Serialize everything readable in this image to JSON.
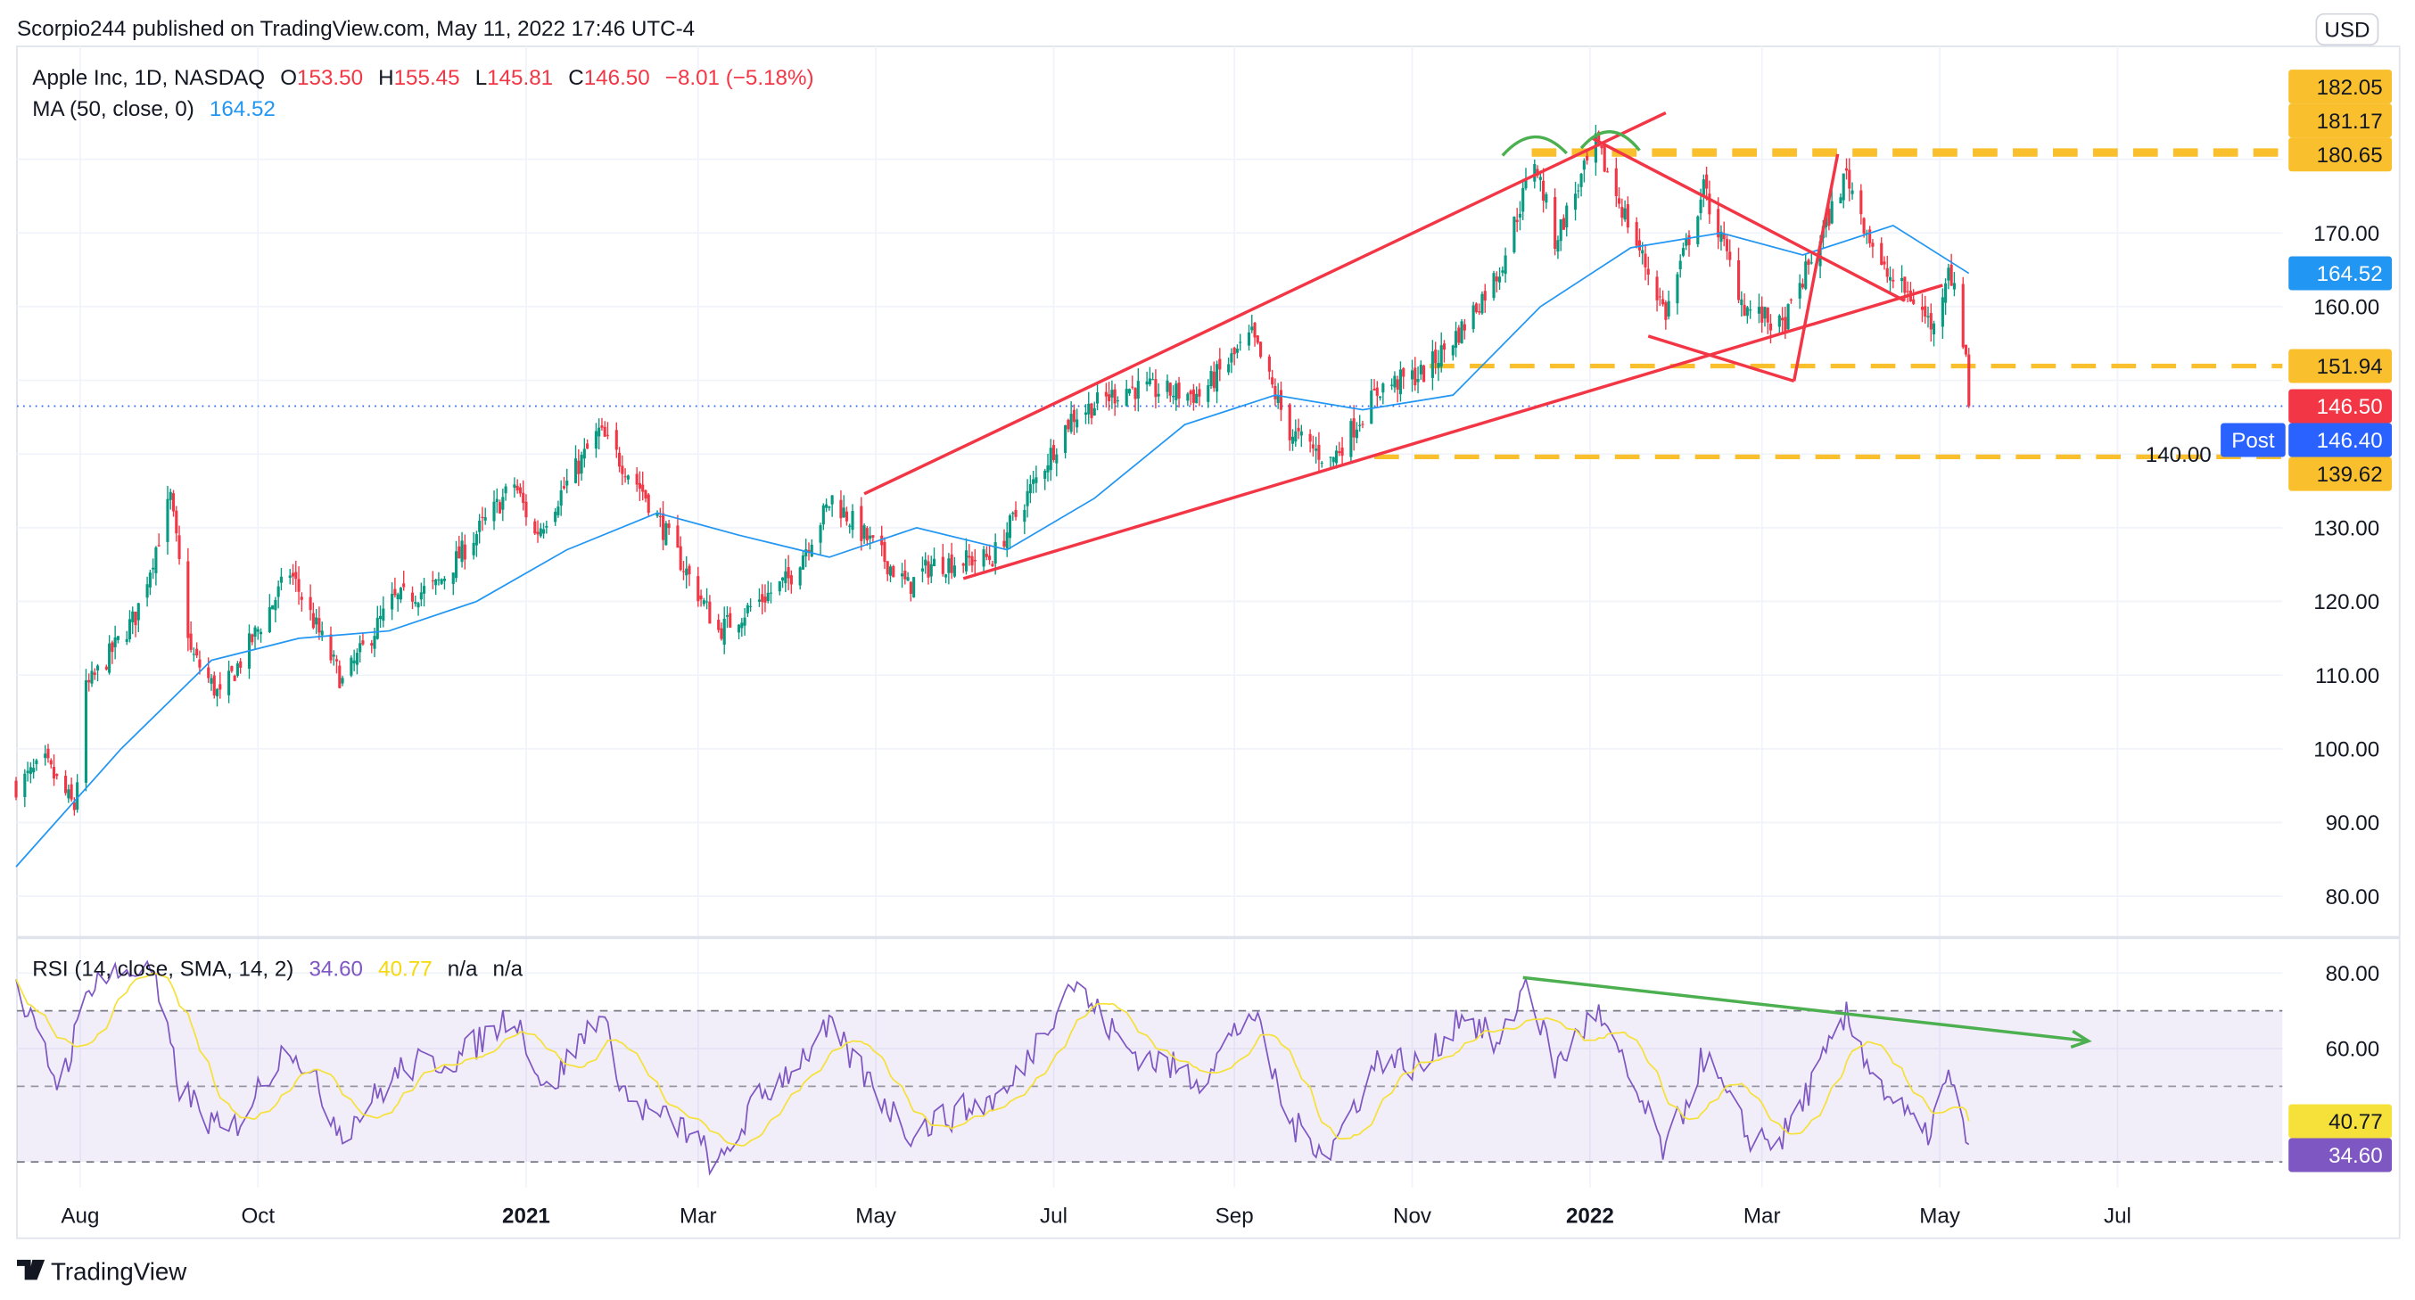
{
  "header": {
    "published": "Scorpio244 published on TradingView.com, May 11, 2022 17:46 UTC-4"
  },
  "legend": {
    "symbol": "Apple Inc, 1D, NASDAQ",
    "o_label": "O",
    "o": "153.50",
    "h_label": "H",
    "h": "155.45",
    "l_label": "L",
    "l": "145.81",
    "c_label": "C",
    "c": "146.50",
    "change": "−8.01 (−5.18%)",
    "ma_label": "MA (50, close, 0)",
    "ma_value": "164.52",
    "rsi_label": "RSI (14, close, SMA, 14, 2)",
    "rsi_value": "34.60",
    "rsi_sma_value": "40.77",
    "na1": "n/a",
    "na2": "n/a"
  },
  "currency": "USD",
  "footer": {
    "brand": "TradingView"
  },
  "colors": {
    "up": "#089981",
    "down": "#f23645",
    "ma": "#2196f3",
    "rsi": "#7e57c2",
    "rsi_sma": "#f5e13a",
    "drawing": "#f23645",
    "level": "#f9bf2c",
    "annotation": "#4caf50",
    "post": "#2962ff"
  },
  "chart_data": [
    {
      "type": "candlestick",
      "title": "Apple Inc, 1D, NASDAQ",
      "ylim": [
        75,
        186
      ],
      "xlim": [
        "2020-07-10",
        "2022-09-05"
      ],
      "price_ticks": [
        "170.00",
        "160.00",
        "140.00",
        "130.00",
        "120.00",
        "110.00",
        "100.00",
        "90.00",
        "80.00"
      ],
      "price_tick_values": [
        170,
        160,
        140,
        130,
        120,
        110,
        100,
        90,
        80
      ],
      "x_ticks": [
        {
          "label": "Aug",
          "date": "2020-08-01",
          "bold": false
        },
        {
          "label": "Oct",
          "date": "2020-10-01",
          "bold": false
        },
        {
          "label": "2021",
          "date": "2021-01-01",
          "bold": true
        },
        {
          "label": "Mar",
          "date": "2021-03-01",
          "bold": false
        },
        {
          "label": "May",
          "date": "2021-05-01",
          "bold": false
        },
        {
          "label": "Jul",
          "date": "2021-07-01",
          "bold": false
        },
        {
          "label": "Sep",
          "date": "2021-09-01",
          "bold": false
        },
        {
          "label": "Nov",
          "date": "2021-11-01",
          "bold": false
        },
        {
          "label": "2022",
          "date": "2022-01-01",
          "bold": true
        },
        {
          "label": "Mar",
          "date": "2022-03-01",
          "bold": false
        },
        {
          "label": "May",
          "date": "2022-05-01",
          "bold": false
        },
        {
          "label": "Jul",
          "date": "2022-07-01",
          "bold": false
        }
      ],
      "close_approx": [
        [
          "2020-07-10",
          95
        ],
        [
          "2020-07-20",
          98
        ],
        [
          "2020-07-30",
          92
        ],
        [
          "2020-08-03",
          108
        ],
        [
          "2020-08-20",
          118
        ],
        [
          "2020-09-01",
          134
        ],
        [
          "2020-09-08",
          113
        ],
        [
          "2020-09-18",
          107
        ],
        [
          "2020-10-12",
          124
        ],
        [
          "2020-10-30",
          109
        ],
        [
          "2020-11-16",
          120
        ],
        [
          "2020-12-01",
          122
        ],
        [
          "2020-12-28",
          136
        ],
        [
          "2021-01-04",
          129
        ],
        [
          "2021-01-26",
          143
        ],
        [
          "2021-02-10",
          135
        ],
        [
          "2021-03-08",
          116
        ],
        [
          "2021-04-01",
          123
        ],
        [
          "2021-04-16",
          134
        ],
        [
          "2021-05-12",
          122
        ],
        [
          "2021-05-20",
          125
        ],
        [
          "2021-06-10",
          126
        ],
        [
          "2021-07-07",
          145
        ],
        [
          "2021-07-26",
          149
        ],
        [
          "2021-08-20",
          148
        ],
        [
          "2021-09-07",
          156
        ],
        [
          "2021-09-20",
          143
        ],
        [
          "2021-10-04",
          139
        ],
        [
          "2021-10-21",
          149
        ],
        [
          "2021-11-05",
          151
        ],
        [
          "2021-11-18",
          157
        ],
        [
          "2021-12-01",
          165
        ],
        [
          "2021-12-13",
          180
        ],
        [
          "2021-12-20",
          169
        ],
        [
          "2022-01-03",
          182
        ],
        [
          "2022-01-27",
          159
        ],
        [
          "2022-02-09",
          176
        ],
        [
          "2022-02-23",
          160
        ],
        [
          "2022-03-08",
          157
        ],
        [
          "2022-03-30",
          178
        ],
        [
          "2022-04-11",
          165
        ],
        [
          "2022-04-22",
          161
        ],
        [
          "2022-04-29",
          157
        ],
        [
          "2022-05-04",
          166
        ],
        [
          "2022-05-10",
          153.5
        ],
        [
          "2022-05-11",
          146.5
        ]
      ],
      "ma50_approx": [
        [
          "2020-07-10",
          84
        ],
        [
          "2020-08-15",
          100
        ],
        [
          "2020-09-15",
          112
        ],
        [
          "2020-10-15",
          115
        ],
        [
          "2020-11-15",
          116
        ],
        [
          "2020-12-15",
          120
        ],
        [
          "2021-01-15",
          127
        ],
        [
          "2021-02-15",
          132
        ],
        [
          "2021-03-15",
          129
        ],
        [
          "2021-04-15",
          126
        ],
        [
          "2021-05-15",
          130
        ],
        [
          "2021-06-15",
          127
        ],
        [
          "2021-07-15",
          134
        ],
        [
          "2021-08-15",
          144
        ],
        [
          "2021-09-15",
          148
        ],
        [
          "2021-10-15",
          146
        ],
        [
          "2021-11-15",
          148
        ],
        [
          "2021-12-15",
          160
        ],
        [
          "2022-01-15",
          168
        ],
        [
          "2022-02-15",
          170
        ],
        [
          "2022-03-15",
          167
        ],
        [
          "2022-04-15",
          171
        ],
        [
          "2022-05-11",
          164.52
        ]
      ],
      "price_labels": [
        {
          "text": "182.05",
          "value": 182.05,
          "kind": "level"
        },
        {
          "text": "181.17",
          "value": 181.17,
          "kind": "level"
        },
        {
          "text": "180.65",
          "value": 180.65,
          "kind": "level"
        },
        {
          "text": "164.52",
          "value": 164.52,
          "kind": "ma"
        },
        {
          "text": "151.94",
          "value": 151.94,
          "kind": "level"
        },
        {
          "text": "146.50",
          "value": 146.5,
          "kind": "last"
        },
        {
          "text": "146.40",
          "value": 146.4,
          "kind": "post",
          "tag": "Post"
        },
        {
          "text": "139.62",
          "value": 139.62,
          "kind": "level"
        }
      ],
      "trendlines": [
        {
          "from": [
            "2021-04-27",
            134.6
          ],
          "to": [
            "2022-01-27",
            186.3
          ]
        },
        {
          "from": [
            "2021-05-31",
            123.1
          ],
          "to": [
            "2022-05-02",
            162.9
          ]
        },
        {
          "from": [
            "2022-01-02",
            182.8
          ],
          "to": [
            "2022-04-19",
            160.8
          ]
        },
        {
          "from": [
            "2022-01-21",
            156
          ],
          "to": [
            "2022-03-12",
            149.9
          ]
        },
        {
          "from": [
            "2022-03-12",
            149.9
          ],
          "to": [
            "2022-03-27",
            180.7
          ]
        }
      ],
      "levels": [
        {
          "value": 181.17,
          "from": "2021-12-12"
        },
        {
          "value": 180.65,
          "from": "2021-12-12"
        },
        {
          "value": 151.94,
          "from": "2021-11-07"
        },
        {
          "value": 139.62,
          "from": "2021-10-19"
        }
      ],
      "arcs": [
        {
          "from": [
            "2021-12-02",
            180.5
          ],
          "to": [
            "2021-12-24",
            180.8
          ]
        },
        {
          "from": [
            "2021-12-29",
            181.5
          ],
          "to": [
            "2022-01-18",
            181.2
          ]
        }
      ]
    },
    {
      "type": "line",
      "title": "RSI (14, close, SMA, 14, 2)",
      "ylim": [
        25,
        85
      ],
      "y_ticks": [
        "80.00",
        "60.00"
      ],
      "y_tick_values": [
        80,
        60
      ],
      "band": [
        30,
        70
      ],
      "midline": 50,
      "rsi_approx": [
        [
          "2020-07-10",
          75
        ],
        [
          "2020-07-25",
          50
        ],
        [
          "2020-08-05",
          78
        ],
        [
          "2020-08-25",
          82
        ],
        [
          "2020-09-04",
          50
        ],
        [
          "2020-09-20",
          36
        ],
        [
          "2020-10-12",
          62
        ],
        [
          "2020-10-30",
          38
        ],
        [
          "2020-11-20",
          55
        ],
        [
          "2020-12-10",
          58
        ],
        [
          "2020-12-28",
          70
        ],
        [
          "2021-01-08",
          48
        ],
        [
          "2021-01-26",
          70
        ],
        [
          "2021-02-05",
          46
        ],
        [
          "2021-02-26",
          38
        ],
        [
          "2021-03-08",
          28
        ],
        [
          "2021-03-20",
          45
        ],
        [
          "2021-04-15",
          65
        ],
        [
          "2021-05-12",
          38
        ],
        [
          "2021-06-15",
          48
        ],
        [
          "2021-07-07",
          78
        ],
        [
          "2021-07-26",
          60
        ],
        [
          "2021-08-20",
          52
        ],
        [
          "2021-09-07",
          70
        ],
        [
          "2021-09-20",
          40
        ],
        [
          "2021-10-04",
          33
        ],
        [
          "2021-10-21",
          58
        ],
        [
          "2021-11-05",
          55
        ],
        [
          "2021-11-18",
          70
        ],
        [
          "2021-12-01",
          60
        ],
        [
          "2021-12-10",
          78
        ],
        [
          "2021-12-20",
          55
        ],
        [
          "2022-01-03",
          70
        ],
        [
          "2022-01-27",
          32
        ],
        [
          "2022-02-09",
          58
        ],
        [
          "2022-02-24",
          37
        ],
        [
          "2022-03-08",
          36
        ],
        [
          "2022-03-30",
          68
        ],
        [
          "2022-04-11",
          50
        ],
        [
          "2022-04-26",
          36
        ],
        [
          "2022-05-04",
          52
        ],
        [
          "2022-05-11",
          34.6
        ]
      ],
      "value_labels": [
        {
          "text": "40.77",
          "value": 40.77,
          "kind": "sma"
        },
        {
          "text": "34.60",
          "value": 34.6,
          "kind": "rsi"
        }
      ],
      "arrow": {
        "from": [
          "2021-12-09",
          78.8
        ],
        "to": [
          "2022-06-21",
          62
        ]
      }
    }
  ]
}
